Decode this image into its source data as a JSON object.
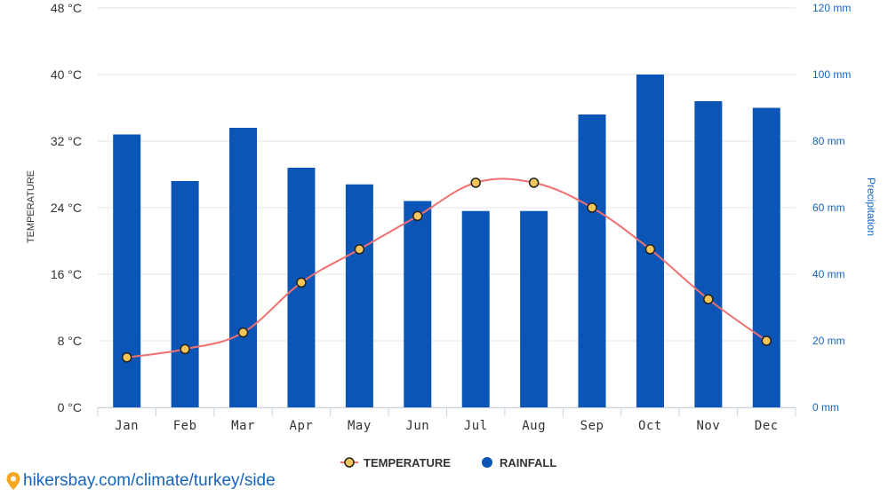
{
  "chart_data": {
    "type": "bar",
    "categories": [
      "Jan",
      "Feb",
      "Mar",
      "Apr",
      "May",
      "Jun",
      "Jul",
      "Aug",
      "Sep",
      "Oct",
      "Nov",
      "Dec"
    ],
    "series": [
      {
        "name": "RAINFALL",
        "type": "bar",
        "axis": "right",
        "color": "#0a55b5",
        "values": [
          82,
          68,
          84,
          72,
          67,
          62,
          59,
          59,
          88,
          100,
          92,
          90
        ]
      },
      {
        "name": "TEMPERATURE",
        "type": "line",
        "axis": "left",
        "color": "#f07070",
        "marker_fill": "#f6c55a",
        "marker_stroke": "#222222",
        "values": [
          6,
          7,
          9,
          15,
          19,
          23,
          27,
          27,
          24,
          19,
          13,
          8
        ]
      }
    ],
    "left_axis": {
      "title": "TEMPERATURE",
      "ylim": [
        0,
        48
      ],
      "ticks": [
        "0 °C",
        "8 °C",
        "16 °C",
        "24 °C",
        "32 °C",
        "40 °C",
        "48 °C"
      ]
    },
    "right_axis": {
      "title": "Precipitation",
      "ylim": [
        0,
        120
      ],
      "ticks": [
        "0 mm",
        "20 mm",
        "40 mm",
        "60 mm",
        "80 mm",
        "100 mm",
        "120 mm"
      ]
    },
    "grid": true,
    "legend_position": "bottom-center"
  },
  "source": {
    "text": "hikersbay.com/climate/turkey/side"
  }
}
